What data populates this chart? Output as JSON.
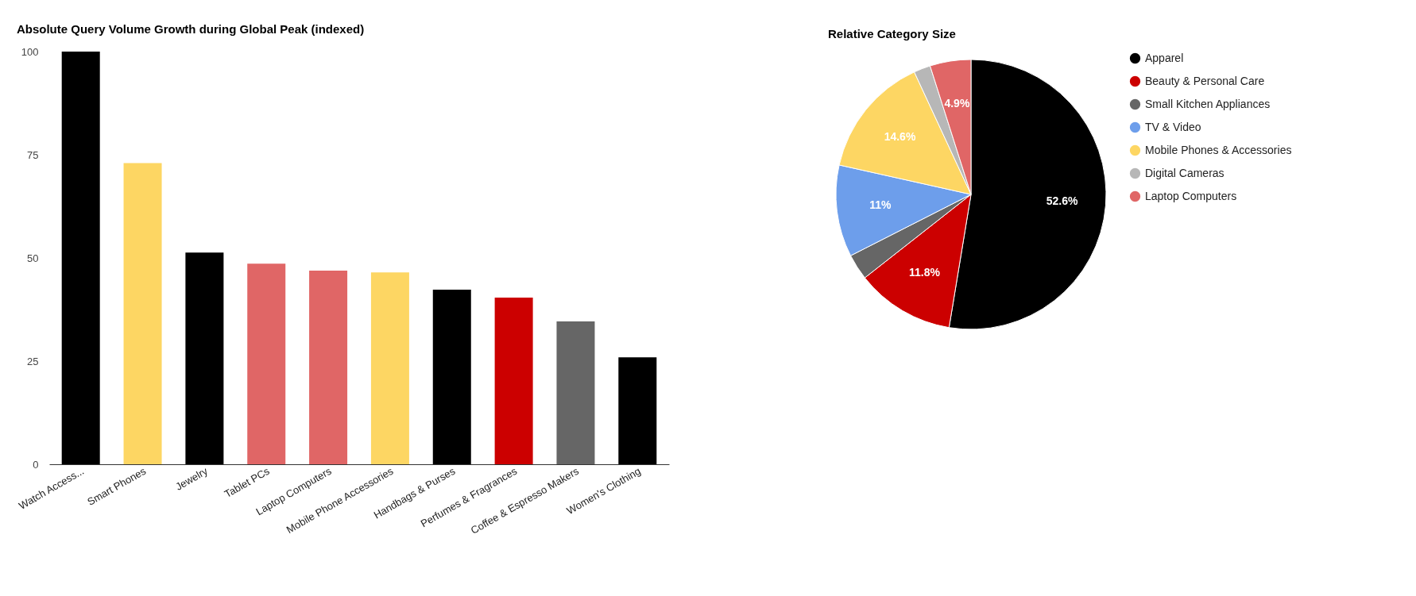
{
  "chart_data": [
    {
      "type": "bar",
      "title": "Absolute Query Volume Growth during Global Peak (indexed)",
      "categories": [
        "Watch Access...",
        "Smart Phones",
        "Jewelry",
        "Tablet PCs",
        "Laptop Computers",
        "Mobile Phone Accessories",
        "Handbags & Purses",
        "Perfumes & Fragrances",
        "Coffee & Espresso Makers",
        "Women's Clothing"
      ],
      "values": [
        100,
        73,
        51.3,
        48.6,
        46.9,
        46.5,
        42.3,
        40.4,
        34.6,
        25.9
      ],
      "colors": [
        "#000000",
        "#fdd663",
        "#000000",
        "#e06666",
        "#e06666",
        "#fdd663",
        "#000000",
        "#cc0000",
        "#666666",
        "#000000"
      ],
      "ylim": [
        0,
        100
      ],
      "yticks": [
        0,
        25,
        50,
        75,
        100
      ]
    },
    {
      "type": "pie",
      "title": "Relative Category Size",
      "categories": [
        "Apparel",
        "Beauty & Personal Care",
        "Small Kitchen Appliances",
        "TV & Video",
        "Mobile Phones & Accessories",
        "Digital Cameras",
        "Laptop Computers"
      ],
      "values": [
        52.6,
        11.8,
        3.1,
        11,
        14.6,
        2.0,
        4.9
      ],
      "value_labels": [
        "52.6%",
        "11.8%",
        null,
        "11%",
        "14.6%",
        null,
        "4.9%"
      ],
      "colors": [
        "#000000",
        "#cc0000",
        "#666666",
        "#6d9eeb",
        "#fdd663",
        "#b7b7b7",
        "#e06666"
      ],
      "legend": "right"
    }
  ]
}
